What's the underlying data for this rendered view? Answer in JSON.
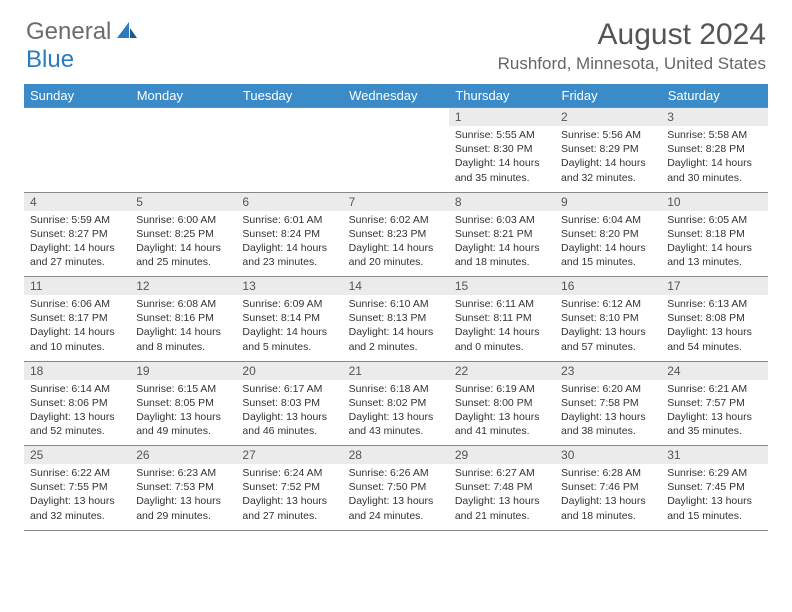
{
  "logo": {
    "part1": "General",
    "part2": "Blue"
  },
  "title": "August 2024",
  "location": "Rushford, Minnesota, United States",
  "colors": {
    "header_bg": "#3b8bc9",
    "daynum_bg": "#ebebeb",
    "border": "#888888",
    "text": "#333333",
    "logo_gray": "#6b6b6b",
    "logo_blue": "#2b7bbf"
  },
  "weekdays": [
    "Sunday",
    "Monday",
    "Tuesday",
    "Wednesday",
    "Thursday",
    "Friday",
    "Saturday"
  ],
  "weeks": [
    [
      null,
      null,
      null,
      null,
      {
        "n": "1",
        "sr": "Sunrise: 5:55 AM",
        "ss": "Sunset: 8:30 PM",
        "d1": "Daylight: 14 hours",
        "d2": "and 35 minutes."
      },
      {
        "n": "2",
        "sr": "Sunrise: 5:56 AM",
        "ss": "Sunset: 8:29 PM",
        "d1": "Daylight: 14 hours",
        "d2": "and 32 minutes."
      },
      {
        "n": "3",
        "sr": "Sunrise: 5:58 AM",
        "ss": "Sunset: 8:28 PM",
        "d1": "Daylight: 14 hours",
        "d2": "and 30 minutes."
      }
    ],
    [
      {
        "n": "4",
        "sr": "Sunrise: 5:59 AM",
        "ss": "Sunset: 8:27 PM",
        "d1": "Daylight: 14 hours",
        "d2": "and 27 minutes."
      },
      {
        "n": "5",
        "sr": "Sunrise: 6:00 AM",
        "ss": "Sunset: 8:25 PM",
        "d1": "Daylight: 14 hours",
        "d2": "and 25 minutes."
      },
      {
        "n": "6",
        "sr": "Sunrise: 6:01 AM",
        "ss": "Sunset: 8:24 PM",
        "d1": "Daylight: 14 hours",
        "d2": "and 23 minutes."
      },
      {
        "n": "7",
        "sr": "Sunrise: 6:02 AM",
        "ss": "Sunset: 8:23 PM",
        "d1": "Daylight: 14 hours",
        "d2": "and 20 minutes."
      },
      {
        "n": "8",
        "sr": "Sunrise: 6:03 AM",
        "ss": "Sunset: 8:21 PM",
        "d1": "Daylight: 14 hours",
        "d2": "and 18 minutes."
      },
      {
        "n": "9",
        "sr": "Sunrise: 6:04 AM",
        "ss": "Sunset: 8:20 PM",
        "d1": "Daylight: 14 hours",
        "d2": "and 15 minutes."
      },
      {
        "n": "10",
        "sr": "Sunrise: 6:05 AM",
        "ss": "Sunset: 8:18 PM",
        "d1": "Daylight: 14 hours",
        "d2": "and 13 minutes."
      }
    ],
    [
      {
        "n": "11",
        "sr": "Sunrise: 6:06 AM",
        "ss": "Sunset: 8:17 PM",
        "d1": "Daylight: 14 hours",
        "d2": "and 10 minutes."
      },
      {
        "n": "12",
        "sr": "Sunrise: 6:08 AM",
        "ss": "Sunset: 8:16 PM",
        "d1": "Daylight: 14 hours",
        "d2": "and 8 minutes."
      },
      {
        "n": "13",
        "sr": "Sunrise: 6:09 AM",
        "ss": "Sunset: 8:14 PM",
        "d1": "Daylight: 14 hours",
        "d2": "and 5 minutes."
      },
      {
        "n": "14",
        "sr": "Sunrise: 6:10 AM",
        "ss": "Sunset: 8:13 PM",
        "d1": "Daylight: 14 hours",
        "d2": "and 2 minutes."
      },
      {
        "n": "15",
        "sr": "Sunrise: 6:11 AM",
        "ss": "Sunset: 8:11 PM",
        "d1": "Daylight: 14 hours",
        "d2": "and 0 minutes."
      },
      {
        "n": "16",
        "sr": "Sunrise: 6:12 AM",
        "ss": "Sunset: 8:10 PM",
        "d1": "Daylight: 13 hours",
        "d2": "and 57 minutes."
      },
      {
        "n": "17",
        "sr": "Sunrise: 6:13 AM",
        "ss": "Sunset: 8:08 PM",
        "d1": "Daylight: 13 hours",
        "d2": "and 54 minutes."
      }
    ],
    [
      {
        "n": "18",
        "sr": "Sunrise: 6:14 AM",
        "ss": "Sunset: 8:06 PM",
        "d1": "Daylight: 13 hours",
        "d2": "and 52 minutes."
      },
      {
        "n": "19",
        "sr": "Sunrise: 6:15 AM",
        "ss": "Sunset: 8:05 PM",
        "d1": "Daylight: 13 hours",
        "d2": "and 49 minutes."
      },
      {
        "n": "20",
        "sr": "Sunrise: 6:17 AM",
        "ss": "Sunset: 8:03 PM",
        "d1": "Daylight: 13 hours",
        "d2": "and 46 minutes."
      },
      {
        "n": "21",
        "sr": "Sunrise: 6:18 AM",
        "ss": "Sunset: 8:02 PM",
        "d1": "Daylight: 13 hours",
        "d2": "and 43 minutes."
      },
      {
        "n": "22",
        "sr": "Sunrise: 6:19 AM",
        "ss": "Sunset: 8:00 PM",
        "d1": "Daylight: 13 hours",
        "d2": "and 41 minutes."
      },
      {
        "n": "23",
        "sr": "Sunrise: 6:20 AM",
        "ss": "Sunset: 7:58 PM",
        "d1": "Daylight: 13 hours",
        "d2": "and 38 minutes."
      },
      {
        "n": "24",
        "sr": "Sunrise: 6:21 AM",
        "ss": "Sunset: 7:57 PM",
        "d1": "Daylight: 13 hours",
        "d2": "and 35 minutes."
      }
    ],
    [
      {
        "n": "25",
        "sr": "Sunrise: 6:22 AM",
        "ss": "Sunset: 7:55 PM",
        "d1": "Daylight: 13 hours",
        "d2": "and 32 minutes."
      },
      {
        "n": "26",
        "sr": "Sunrise: 6:23 AM",
        "ss": "Sunset: 7:53 PM",
        "d1": "Daylight: 13 hours",
        "d2": "and 29 minutes."
      },
      {
        "n": "27",
        "sr": "Sunrise: 6:24 AM",
        "ss": "Sunset: 7:52 PM",
        "d1": "Daylight: 13 hours",
        "d2": "and 27 minutes."
      },
      {
        "n": "28",
        "sr": "Sunrise: 6:26 AM",
        "ss": "Sunset: 7:50 PM",
        "d1": "Daylight: 13 hours",
        "d2": "and 24 minutes."
      },
      {
        "n": "29",
        "sr": "Sunrise: 6:27 AM",
        "ss": "Sunset: 7:48 PM",
        "d1": "Daylight: 13 hours",
        "d2": "and 21 minutes."
      },
      {
        "n": "30",
        "sr": "Sunrise: 6:28 AM",
        "ss": "Sunset: 7:46 PM",
        "d1": "Daylight: 13 hours",
        "d2": "and 18 minutes."
      },
      {
        "n": "31",
        "sr": "Sunrise: 6:29 AM",
        "ss": "Sunset: 7:45 PM",
        "d1": "Daylight: 13 hours",
        "d2": "and 15 minutes."
      }
    ]
  ]
}
